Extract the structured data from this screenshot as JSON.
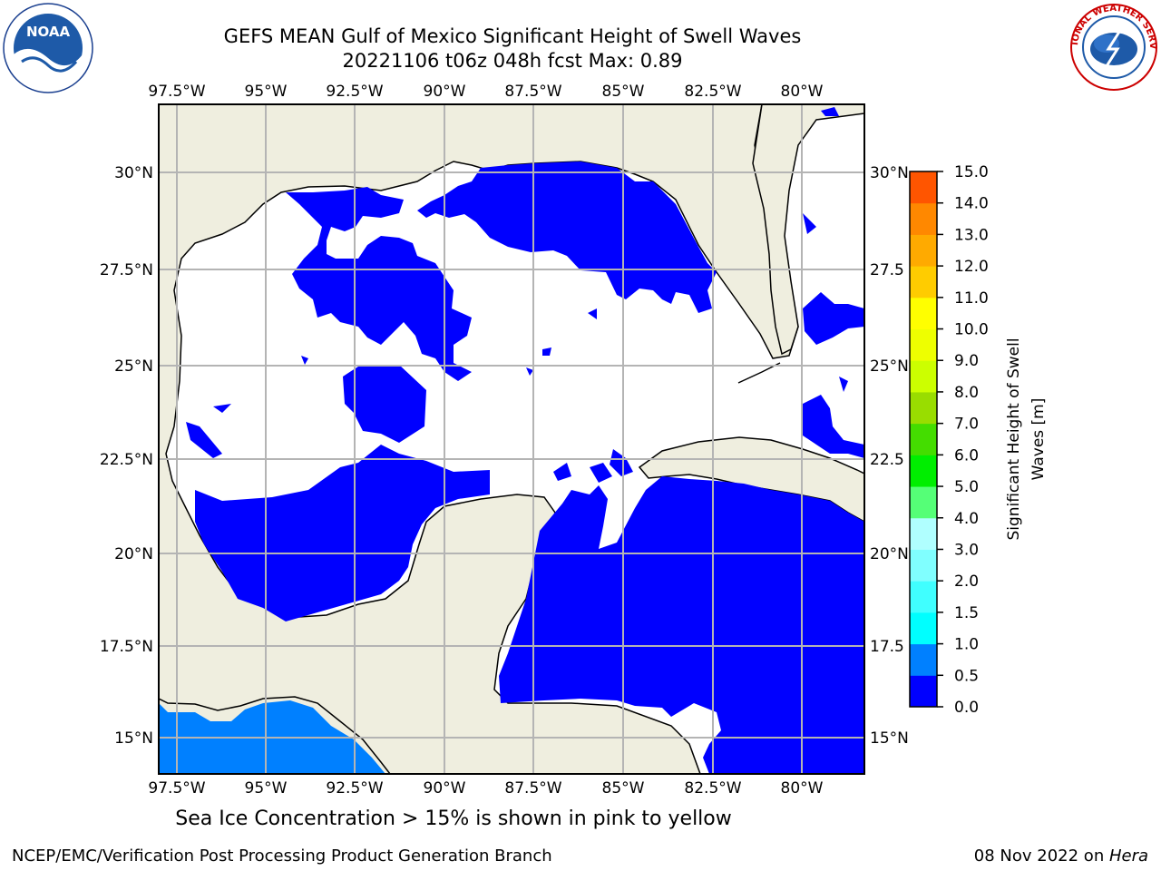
{
  "title": {
    "line1": "GEFS MEAN Gulf of Mexico Significant Height of Swell Waves",
    "line2": "20221106 t06z 048h fcst   Max: 0.89"
  },
  "map": {
    "lon_ticks": [
      "97.5°W",
      "95°W",
      "92.5°W",
      "90°W",
      "87.5°W",
      "85°W",
      "82.5°W",
      "80°W"
    ],
    "lat_ticks_left": [
      "30°N",
      "27.5°N",
      "25°N",
      "22.5°N",
      "20°N",
      "17.5°N",
      "15°N"
    ],
    "lat_ticks_right": [
      "30°N",
      "27.5",
      "25°N",
      "22.5",
      "20°N",
      "17.5",
      "15°N"
    ],
    "colors": {
      "land": "#efeedf",
      "water_zero": "#ffffff",
      "swell_low": "#0000ff",
      "swell_mid": "#0080ff",
      "grid": "#b4b4b4"
    }
  },
  "colorbar": {
    "label_line1": "Significant Height of Swell",
    "label_line2": "Waves [m]",
    "ticks": [
      "15.0",
      "14.0",
      "13.0",
      "12.0",
      "11.0",
      "10.0",
      "9.0",
      "8.0",
      "7.0",
      "6.0",
      "5.0",
      "4.0",
      "3.0",
      "2.0",
      "1.5",
      "1.0",
      "0.5",
      "0.0"
    ],
    "colors": [
      "#0000ff",
      "#0080ff",
      "#00ffff",
      "#40ffff",
      "#80ffff",
      "#b0ffff",
      "#55ff77",
      "#00ee00",
      "#44dd00",
      "#99dd00",
      "#ccff00",
      "#eeff00",
      "#ffff00",
      "#ffcc00",
      "#ffaa00",
      "#ff8800",
      "#ff5500",
      "#ff2200",
      "#ff0000"
    ]
  },
  "footnote": "Sea Ice Concentration > 15% is shown in pink to yellow",
  "credit_left": "NCEP/EMC/Verification Post Processing Product Generation Branch",
  "credit_right_date": "08 Nov 2022 on ",
  "credit_right_host": "Hera",
  "logos": {
    "left_text": "NOAA",
    "right_text": "NATIONAL WEATHER SERVICE"
  }
}
